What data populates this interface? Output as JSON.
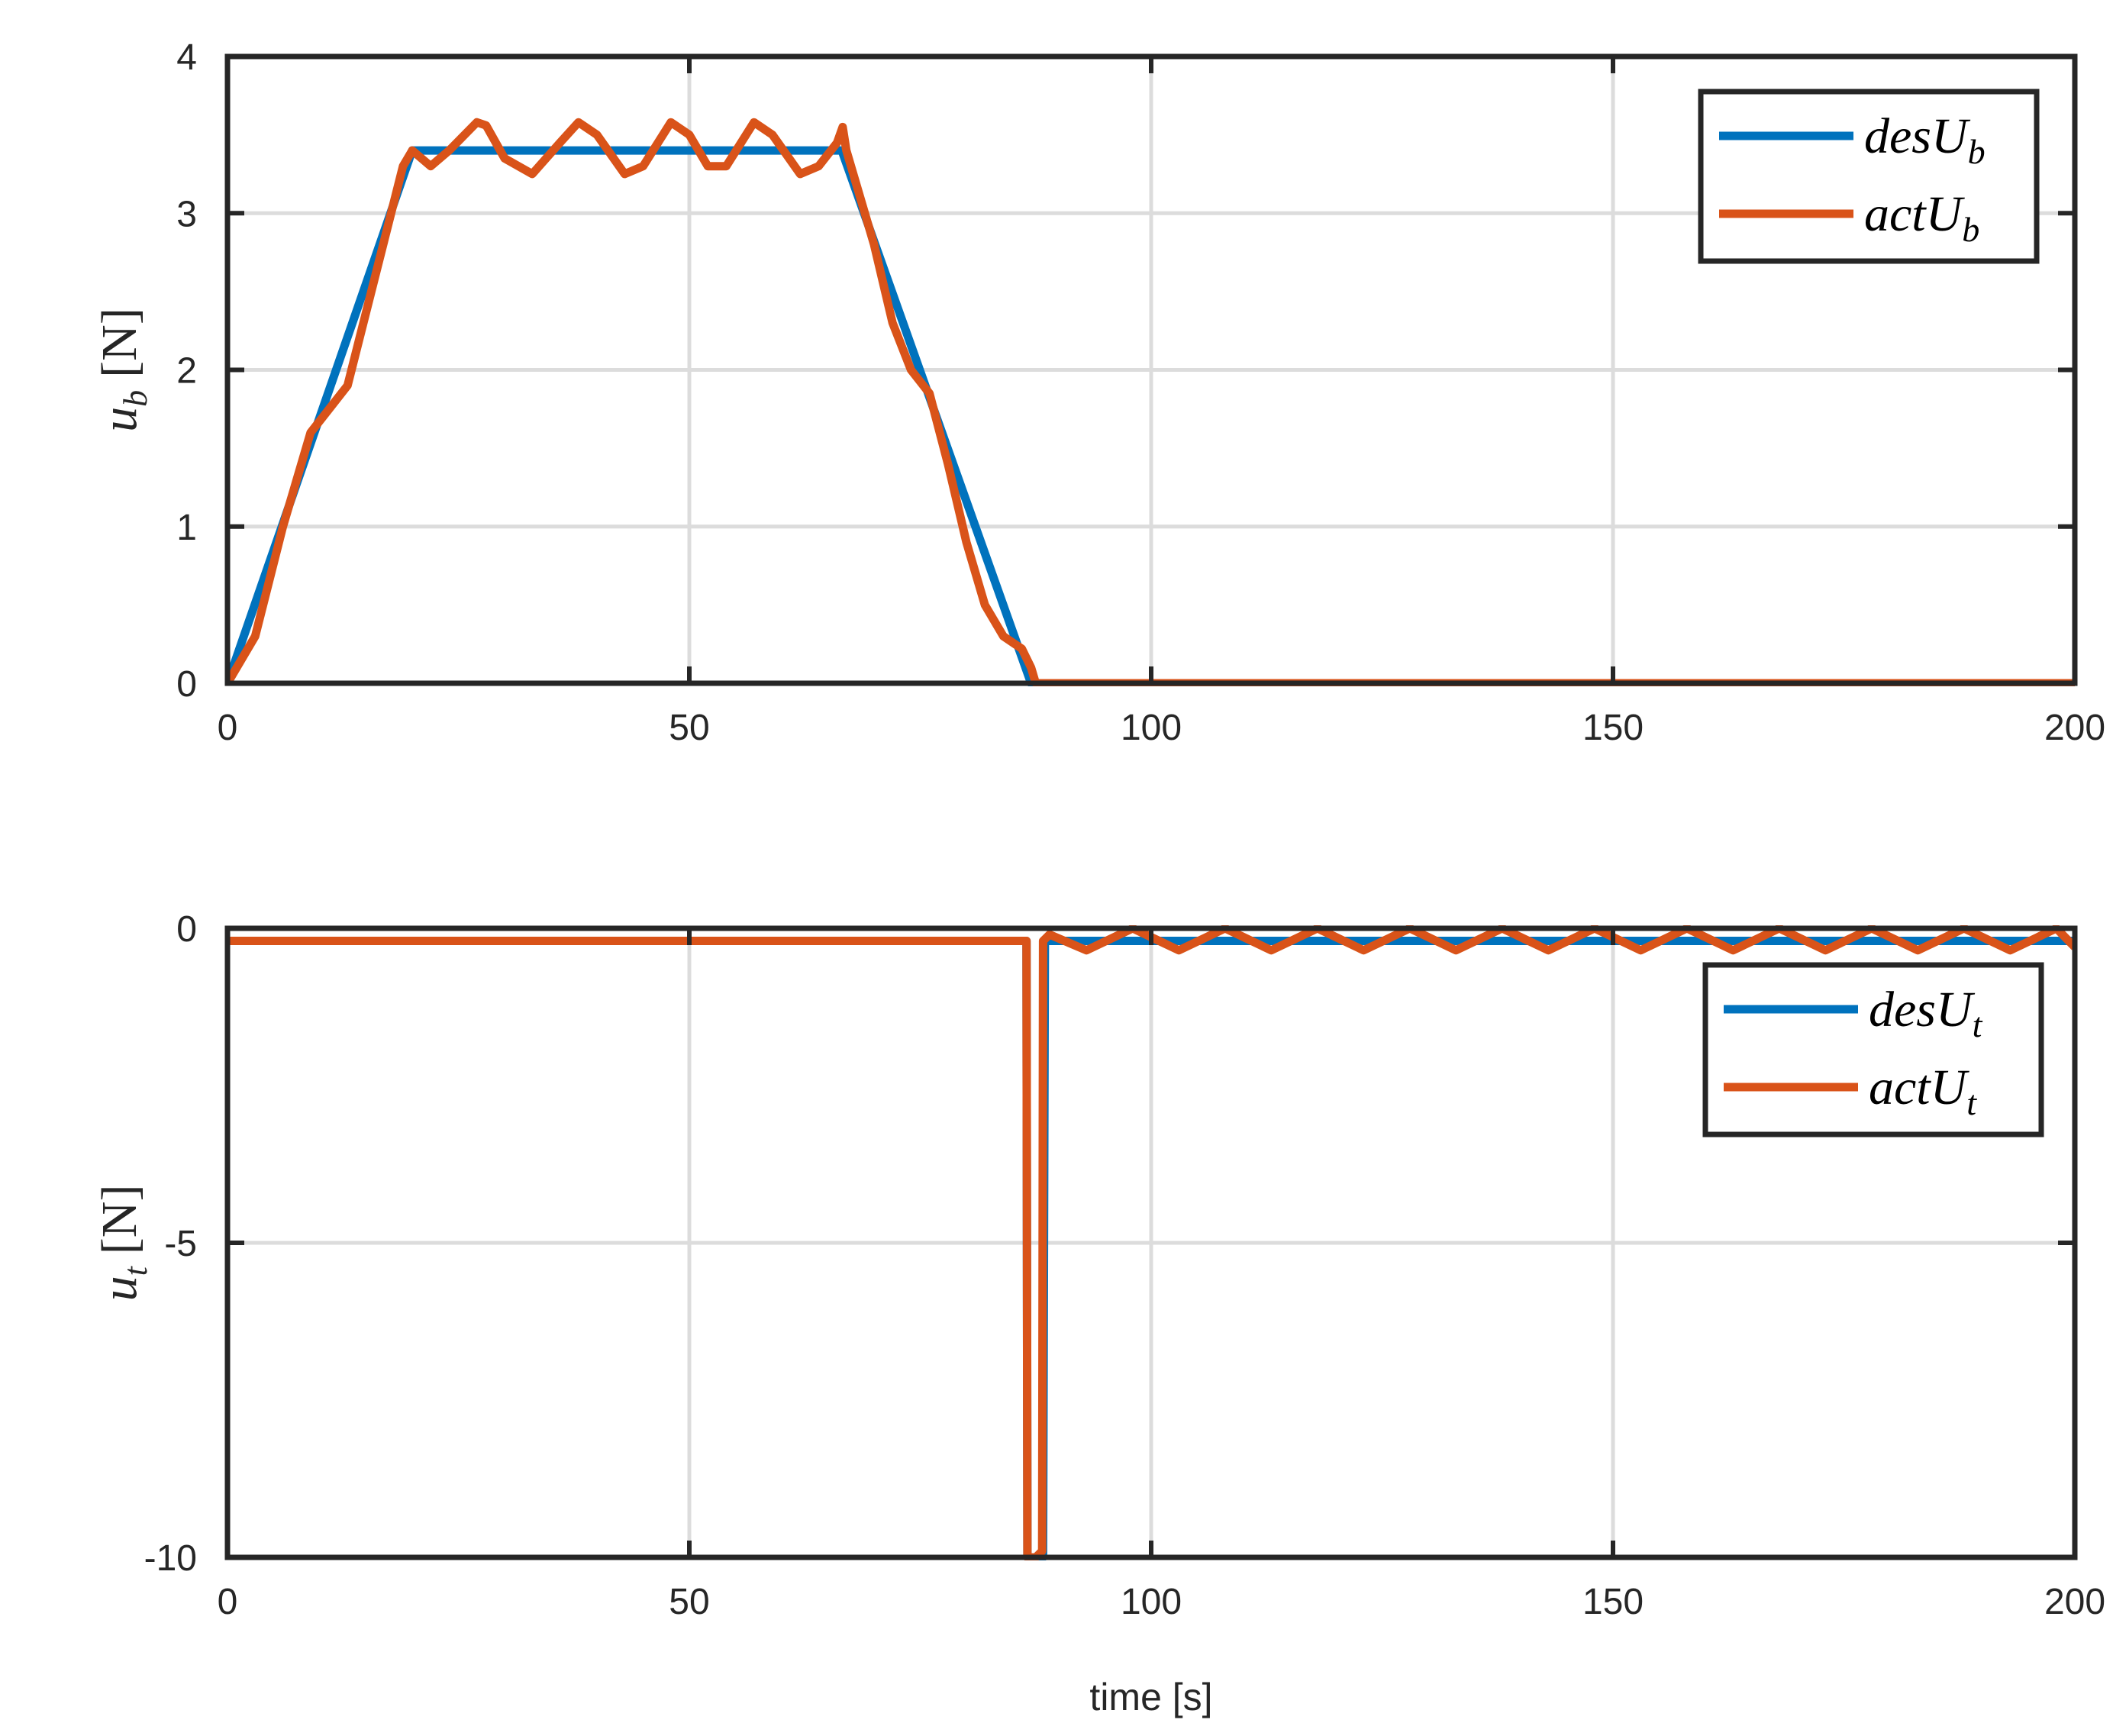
{
  "chart_data": [
    {
      "type": "line",
      "panel": "top",
      "ylabel": {
        "var": "u",
        "sub": "b",
        "unit": "[N]"
      },
      "xlabel": "",
      "xlim": [
        0,
        200
      ],
      "ylim": [
        0,
        4
      ],
      "x_ticks": [
        "0",
        "50",
        "100",
        "150",
        "200"
      ],
      "y_ticks": [
        "0",
        "1",
        "2",
        "3",
        "4"
      ],
      "grid": true,
      "legend_position": "top-right",
      "series": [
        {
          "name": "desU_b",
          "legend": {
            "base": "desU",
            "sub": "b"
          },
          "color": "#0072BD",
          "points": [
            [
              0,
              0
            ],
            [
              20,
              3.4
            ],
            [
              66.5,
              3.4
            ],
            [
              87,
              0
            ],
            [
              200,
              0
            ]
          ]
        },
        {
          "name": "actU_b",
          "legend": {
            "base": "actU",
            "sub": "b"
          },
          "color": "#D95319",
          "points": [
            [
              0,
              0
            ],
            [
              3,
              0.3
            ],
            [
              6,
              1.0
            ],
            [
              9,
              1.6
            ],
            [
              11,
              1.75
            ],
            [
              13,
              1.9
            ],
            [
              16,
              2.6
            ],
            [
              19,
              3.3
            ],
            [
              20,
              3.4
            ],
            [
              22,
              3.3
            ],
            [
              24,
              3.4
            ],
            [
              27,
              3.58
            ],
            [
              28,
              3.56
            ],
            [
              30,
              3.35
            ],
            [
              33,
              3.25
            ],
            [
              36,
              3.45
            ],
            [
              38,
              3.58
            ],
            [
              40,
              3.5
            ],
            [
              43,
              3.25
            ],
            [
              45,
              3.3
            ],
            [
              48,
              3.58
            ],
            [
              50,
              3.5
            ],
            [
              52,
              3.3
            ],
            [
              54,
              3.3
            ],
            [
              57,
              3.58
            ],
            [
              59,
              3.5
            ],
            [
              62,
              3.25
            ],
            [
              64,
              3.3
            ],
            [
              66,
              3.45
            ],
            [
              66.6,
              3.55
            ],
            [
              67,
              3.4
            ],
            [
              70,
              2.8
            ],
            [
              72,
              2.3
            ],
            [
              74,
              2.0
            ],
            [
              76,
              1.85
            ],
            [
              78,
              1.4
            ],
            [
              80,
              0.9
            ],
            [
              82,
              0.5
            ],
            [
              84,
              0.3
            ],
            [
              86,
              0.22
            ],
            [
              87,
              0.1
            ],
            [
              87.5,
              0
            ],
            [
              200,
              0
            ]
          ]
        }
      ]
    },
    {
      "type": "line",
      "panel": "bottom",
      "ylabel": {
        "var": "u",
        "sub": "t",
        "unit": "[N]"
      },
      "xlabel": "time [s]",
      "xlim": [
        0,
        200
      ],
      "ylim": [
        -10,
        0
      ],
      "x_ticks": [
        "0",
        "50",
        "100",
        "150",
        "200"
      ],
      "y_ticks": [
        "-10",
        "-5",
        "0"
      ],
      "grid": true,
      "legend_position": "top-right",
      "series": [
        {
          "name": "desU_t",
          "legend": {
            "base": "desU",
            "sub": "t"
          },
          "color": "#0072BD",
          "points": [
            [
              0,
              -0.2
            ],
            [
              86.5,
              -0.2
            ],
            [
              86.6,
              -10
            ],
            [
              88.3,
              -10
            ],
            [
              88.5,
              -0.2
            ],
            [
              200,
              -0.2
            ]
          ]
        },
        {
          "name": "actU_t",
          "legend": {
            "base": "actU",
            "sub": "t"
          },
          "color": "#D95319",
          "points": [
            [
              0,
              -0.2
            ],
            [
              86.5,
              -0.2
            ],
            [
              86.6,
              -10
            ],
            [
              87.5,
              -10
            ],
            [
              88.2,
              -9.9
            ],
            [
              88.3,
              -0.2
            ],
            [
              89,
              -0.1
            ],
            [
              93,
              -0.35
            ],
            [
              98,
              0
            ],
            [
              103,
              -0.35
            ],
            [
              108,
              0
            ],
            [
              113,
              -0.35
            ],
            [
              118,
              0
            ],
            [
              123,
              -0.35
            ],
            [
              128,
              0
            ],
            [
              133,
              -0.35
            ],
            [
              138,
              0
            ],
            [
              143,
              -0.35
            ],
            [
              148,
              0
            ],
            [
              153,
              -0.35
            ],
            [
              158,
              0
            ],
            [
              163,
              -0.35
            ],
            [
              168,
              0
            ],
            [
              173,
              -0.35
            ],
            [
              178,
              0
            ],
            [
              183,
              -0.35
            ],
            [
              188,
              0
            ],
            [
              193,
              -0.35
            ],
            [
              198,
              0
            ],
            [
              200,
              -0.3
            ]
          ]
        }
      ]
    }
  ]
}
